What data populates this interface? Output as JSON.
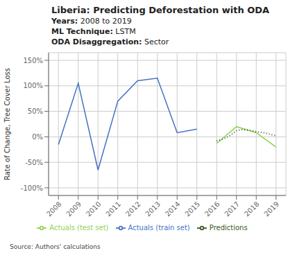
{
  "chart_data": {
    "type": "line",
    "title": "Liberia: Predicting Deforestation with ODA",
    "subtitle": [
      "Years: 2008 to 2019",
      "ML Technique: LSTM",
      "ODA Disaggregation: Sector"
    ],
    "ylabel": "Rate of Change, Tree Cover Loss",
    "annotations": [
      "Source: Authors' calculations"
    ],
    "series": [
      {
        "name": "Actuals (train set)",
        "color": "#4472C4",
        "line_style": "solid",
        "x": [
          2008,
          2009,
          2010,
          2011,
          2012,
          2013,
          2014,
          2015
        ],
        "values": [
          -15,
          105,
          -65,
          70,
          110,
          115,
          8,
          15
        ]
      },
      {
        "name": "Actuals (test set)",
        "color": "#92D050",
        "line_style": "solid",
        "x": [
          2016,
          2017,
          2018,
          2019
        ],
        "values": [
          -13,
          20,
          8,
          -20
        ]
      },
      {
        "name": "Predictions",
        "color": "#375623",
        "line_style": "dotted",
        "x": [
          2016,
          2016.2,
          2016.4,
          2016.6,
          2016.8,
          2017,
          2017.2,
          2017.4,
          2017.6,
          2017.8,
          2018,
          2018.2,
          2018.4,
          2018.6,
          2018.8,
          2019
        ],
        "values": [
          -8,
          -6,
          -3,
          1,
          6,
          12,
          14,
          14,
          13,
          12,
          10,
          9,
          8,
          6,
          4,
          2
        ]
      }
    ],
    "xlim": [
      2007.5,
      2019.5
    ],
    "xticks": [
      2008,
      2009,
      2010,
      2011,
      2012,
      2013,
      2014,
      2015,
      2016,
      2017,
      2018,
      2019
    ],
    "ylim": [
      -115,
      165
    ],
    "yticks": [
      {
        "value": -100,
        "label": "-100%"
      },
      {
        "value": -50,
        "label": "-50%"
      },
      {
        "value": 0,
        "label": "0%"
      },
      {
        "value": 50,
        "label": "50%"
      },
      {
        "value": 100,
        "label": "100%"
      },
      {
        "value": 150,
        "label": "150%"
      }
    ],
    "grid": true,
    "legend": "bottom"
  }
}
